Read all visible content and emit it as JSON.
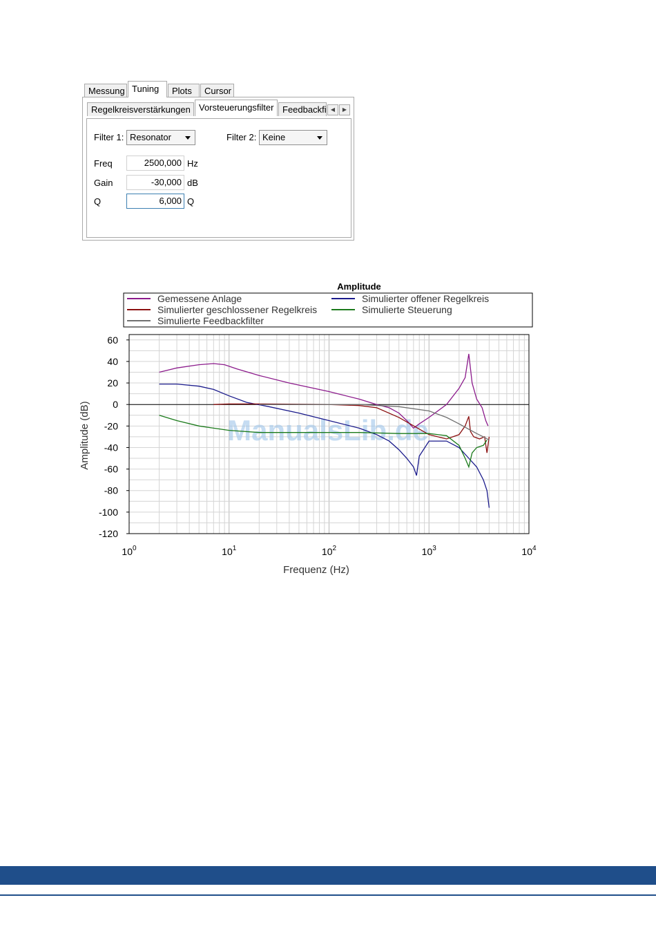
{
  "tabs": {
    "top": [
      "Messung",
      "Tuning",
      "Plots",
      "Cursor"
    ],
    "top_active": "Tuning",
    "sub": [
      "Regelkreisverstärkungen",
      "Vorsteuerungsfilter",
      "Feedbackfi"
    ],
    "sub_active": "Vorsteuerungsfilter"
  },
  "form": {
    "filter1_label": "Filter 1:",
    "filter1_value": "Resonator",
    "filter2_label": "Filter 2:",
    "filter2_value": "Keine",
    "freq_label": "Freq",
    "freq_value": "2500,000",
    "freq_unit": "Hz",
    "gain_label": "Gain",
    "gain_value": "-30,000",
    "gain_unit": "dB",
    "q_label": "Q",
    "q_value": "6,000",
    "q_unit": "Q"
  },
  "icons": {
    "scroll_left": "arrow-left-icon",
    "scroll_right": "arrow-right-icon",
    "dropdown": "chevron-down-icon"
  },
  "chart_data": {
    "type": "line",
    "title": "Amplitude",
    "xlabel": "Frequenz (Hz)",
    "ylabel": "Amplitude (dB)",
    "xscale": "log",
    "xlim": [
      1,
      10000
    ],
    "ylim": [
      -120,
      65
    ],
    "yticks": [
      60,
      40,
      20,
      0,
      -20,
      -40,
      -60,
      -80,
      -100,
      -120
    ],
    "xtick_labels": [
      {
        "base": "10",
        "exp": "0"
      },
      {
        "base": "10",
        "exp": "1"
      },
      {
        "base": "10",
        "exp": "2"
      },
      {
        "base": "10",
        "exp": "3"
      },
      {
        "base": "10",
        "exp": "4"
      }
    ],
    "grid": true,
    "legend_placement": "top",
    "watermark": "ManualsLib.de",
    "series": [
      {
        "name": "Gemessene Anlage",
        "color": "#8b1a8b",
        "x": [
          2,
          3,
          5,
          7,
          9,
          12,
          20,
          40,
          100,
          200,
          300,
          400,
          500,
          600,
          700,
          800,
          1000,
          1500,
          2000,
          2300,
          2500,
          2700,
          3000,
          3400,
          3700,
          3900
        ],
        "y": [
          30,
          34,
          37,
          38,
          37,
          33,
          27,
          20,
          12,
          5,
          0,
          -3,
          -8,
          -15,
          -22,
          -18,
          -12,
          0,
          15,
          25,
          47,
          20,
          5,
          -3,
          -15,
          -20
        ]
      },
      {
        "name": "Simulierter offener Regelkreis",
        "color": "#1a1a8b",
        "x": [
          2,
          3,
          5,
          7,
          10,
          15,
          25,
          50,
          100,
          200,
          300,
          400,
          500,
          600,
          700,
          750,
          800,
          1000,
          1500,
          2000,
          2500,
          3000,
          3500,
          3800,
          4000
        ],
        "y": [
          19,
          19,
          17,
          14,
          8,
          2,
          -2,
          -8,
          -15,
          -22,
          -28,
          -34,
          -42,
          -50,
          -58,
          -66,
          -48,
          -34,
          -34,
          -40,
          -50,
          -58,
          -70,
          -80,
          -96
        ]
      },
      {
        "name": "Simulierter geschlossener Regelkreis",
        "color": "#8b1010",
        "x": [
          7,
          10,
          20,
          40,
          100,
          200,
          300,
          500,
          1000,
          1500,
          2000,
          2300,
          2500,
          2600,
          2800,
          3200,
          3600,
          3800,
          4000
        ],
        "y": [
          0,
          0.5,
          0.5,
          0.3,
          0,
          -1,
          -3,
          -12,
          -28,
          -32,
          -28,
          -20,
          -11,
          -25,
          -30,
          -32,
          -30,
          -45,
          -30
        ]
      },
      {
        "name": "Simulierte Steuerung",
        "color": "#1a7a1a",
        "x": [
          2,
          3,
          5,
          7,
          10,
          20,
          50,
          100,
          200,
          500,
          1000,
          1500,
          2000,
          2300,
          2500,
          2700,
          3000,
          3500,
          3800
        ],
        "y": [
          -10,
          -15,
          -20,
          -22,
          -24,
          -26,
          -26,
          -26,
          -26,
          -27,
          -27,
          -29,
          -38,
          -50,
          -58,
          -45,
          -40,
          -38,
          -33
        ]
      },
      {
        "name": "Simulierte Feedbackfilter",
        "color": "#707070",
        "x": [
          20,
          50,
          100,
          200,
          500,
          1000,
          1500,
          2000,
          2500,
          3000,
          3500,
          4000
        ],
        "y": [
          0,
          0,
          0,
          0,
          -2,
          -6,
          -12,
          -18,
          -23,
          -27,
          -30,
          -33
        ]
      }
    ]
  }
}
